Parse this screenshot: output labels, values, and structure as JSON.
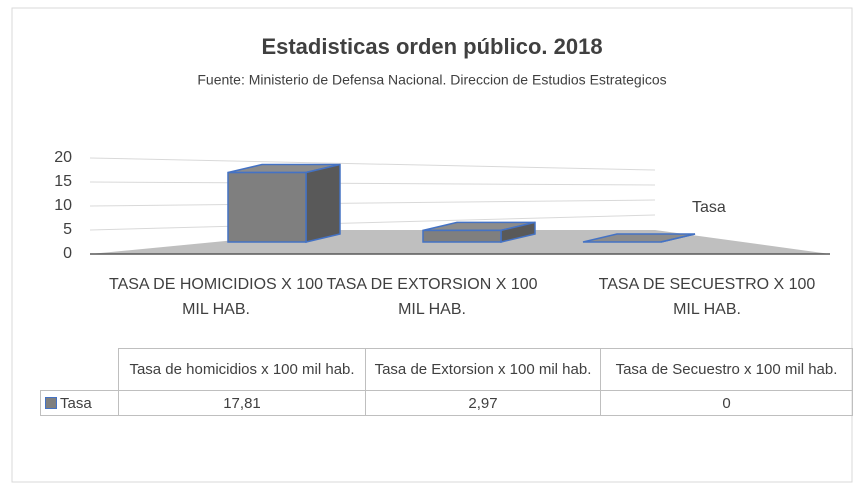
{
  "chart_data": {
    "type": "bar3d",
    "title": "Estadisticas orden público. 2018",
    "subtitle": "Fuente: Ministerio de Defensa Nacional. Direccion de Estudios Estrategicos",
    "categories": [
      "TASA DE HOMICIDIOS X 100 MIL HAB.",
      "TASA DE EXTORSION X 100 MIL HAB.",
      "TASA DE SECUESTRO X 100 MIL HAB."
    ],
    "series": [
      {
        "name": "Tasa",
        "color": "#7f7f7f",
        "edge_color": "#4472c4",
        "values": [
          17.81,
          2.97,
          0
        ],
        "value_labels": [
          "17,81",
          "2,97",
          "0"
        ]
      }
    ],
    "ylim": [
      0,
      20
    ],
    "yticks": [
      0,
      5,
      10,
      15,
      20
    ],
    "grid": true,
    "table_headers": [
      "Tasa de homicidios x 100 mil hab.",
      "Tasa de Extorsion x 100 mil hab.",
      "Tasa de Secuestro x 100 mil hab."
    ]
  }
}
